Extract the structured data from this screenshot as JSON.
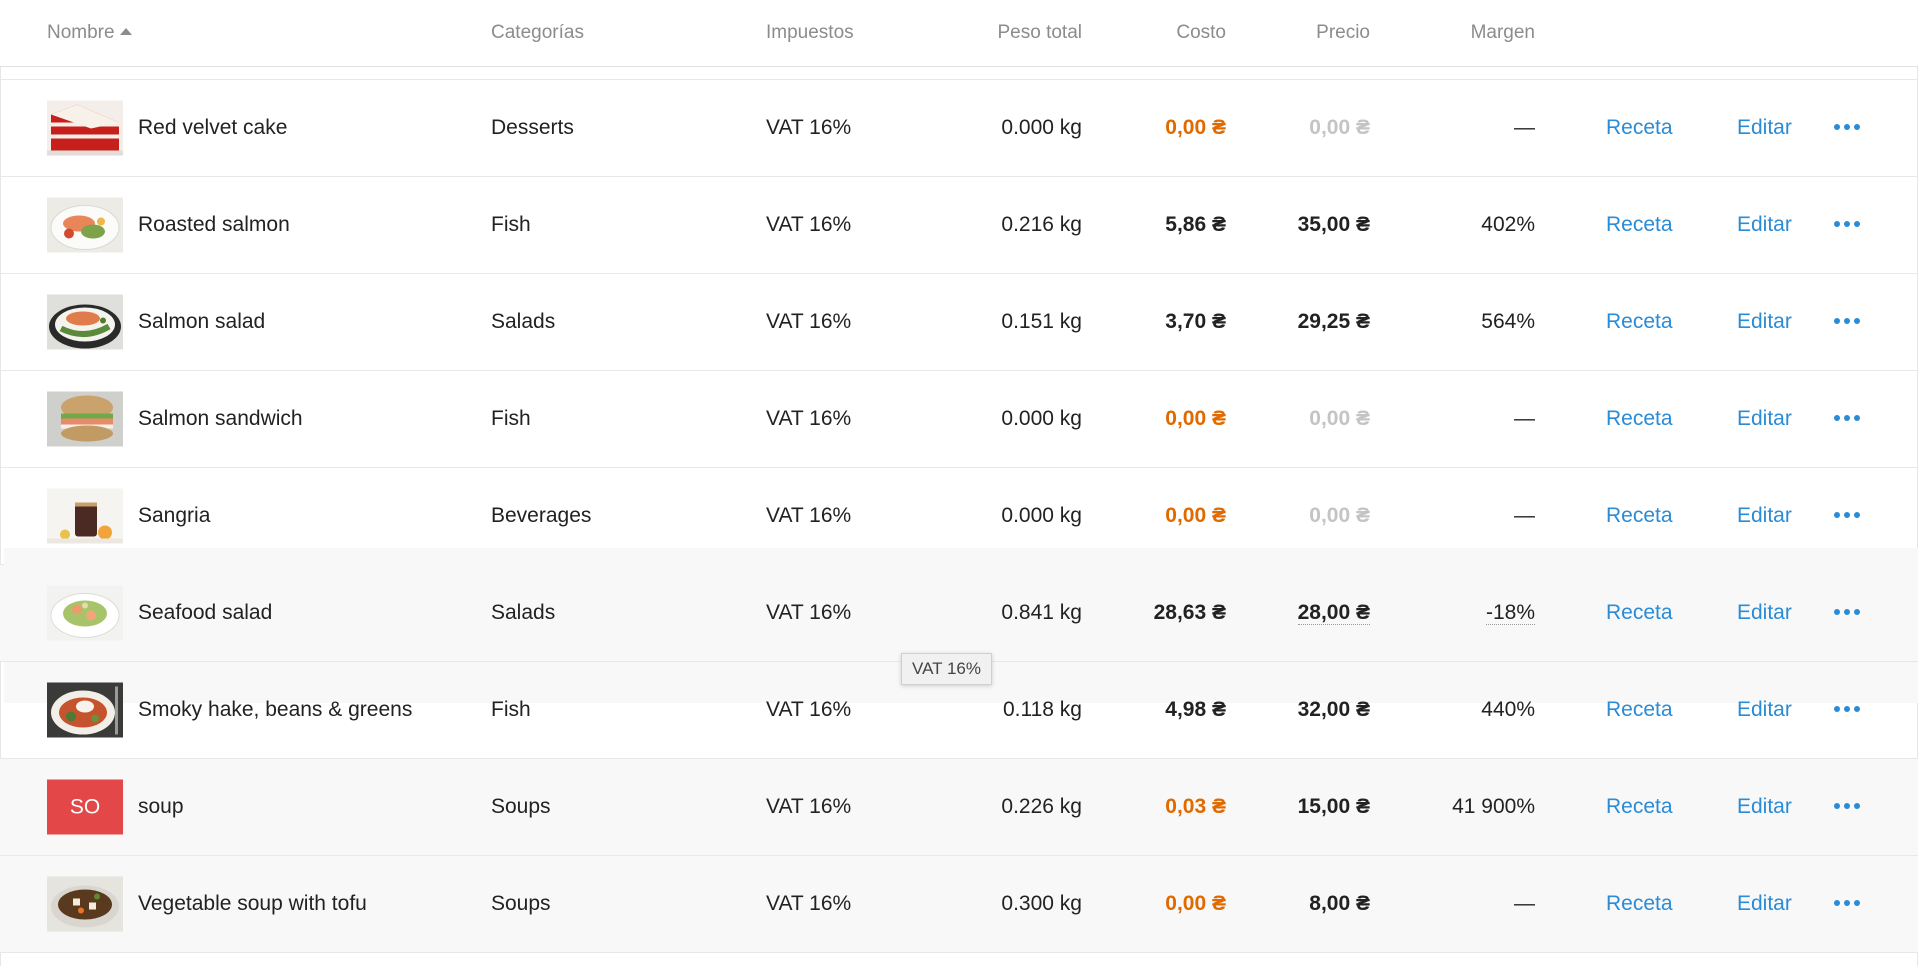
{
  "table": {
    "headers": {
      "name": "Nombre",
      "categories": "Categorías",
      "taxes": "Impuestos",
      "total_weight": "Peso total",
      "cost": "Costo",
      "price": "Precio",
      "margin": "Margen"
    },
    "sort": {
      "column": "name",
      "direction": "ascending"
    },
    "rows": [
      {
        "name": "Red velvet cake",
        "thumb": "red-velvet-cake-photo",
        "category": "Desserts",
        "tax": "VAT 16%",
        "weight": "0.000 kg",
        "cost": "0,00 ₴",
        "cost_state": "warning",
        "price": "0,00 ₴",
        "price_state": "muted",
        "margin": "—",
        "recipe_label": "Receta",
        "edit_label": "Editar"
      },
      {
        "name": "Roasted salmon",
        "thumb": "roasted-salmon-photo",
        "category": "Fish",
        "tax": "VAT 16%",
        "weight": "0.216 kg",
        "cost": "5,86 ₴",
        "cost_state": "normal",
        "price": "35,00 ₴",
        "price_state": "normal",
        "margin": "402%",
        "recipe_label": "Receta",
        "edit_label": "Editar"
      },
      {
        "name": "Salmon salad",
        "thumb": "salmon-salad-photo",
        "category": "Salads",
        "tax": "VAT 16%",
        "weight": "0.151 kg",
        "cost": "3,70 ₴",
        "cost_state": "normal",
        "price": "29,25 ₴",
        "price_state": "normal",
        "margin": "564%",
        "recipe_label": "Receta",
        "edit_label": "Editar"
      },
      {
        "name": "Salmon sandwich",
        "thumb": "salmon-sandwich-photo",
        "category": "Fish",
        "tax": "VAT 16%",
        "weight": "0.000 kg",
        "cost": "0,00 ₴",
        "cost_state": "warning",
        "price": "0,00 ₴",
        "price_state": "muted",
        "margin": "—",
        "recipe_label": "Receta",
        "edit_label": "Editar"
      },
      {
        "name": "Sangria",
        "thumb": "sangria-photo",
        "category": "Beverages",
        "tax": "VAT 16%",
        "weight": "0.000 kg",
        "cost": "0,00 ₴",
        "cost_state": "warning",
        "price": "0,00 ₴",
        "price_state": "muted",
        "margin": "—",
        "recipe_label": "Receta",
        "edit_label": "Editar"
      },
      {
        "name": "Seafood salad",
        "thumb": "seafood-salad-photo",
        "category": "Salads",
        "tax": "VAT 16%",
        "weight": "0.841 kg",
        "cost": "28,63 ₴",
        "cost_state": "normal",
        "price": "28,00 ₴",
        "price_state": "underlined",
        "margin": "-18%",
        "recipe_label": "Receta",
        "edit_label": "Editar"
      },
      {
        "name": "Smoky hake, beans & greens",
        "thumb": "smoky-hake-photo",
        "category": "Fish",
        "tax": "VAT 16%",
        "weight": "0.118 kg",
        "cost": "4,98 ₴",
        "cost_state": "normal",
        "price": "32,00 ₴",
        "price_state": "normal",
        "margin": "440%",
        "recipe_label": "Receta",
        "edit_label": "Editar"
      },
      {
        "name": "soup",
        "initials": "SO",
        "category": "Soups",
        "tax": "VAT 16%",
        "weight": "0.226 kg",
        "cost": "0,03 ₴",
        "cost_state": "warning",
        "price": "15,00 ₴",
        "price_state": "normal",
        "margin": "41 900%",
        "recipe_label": "Receta",
        "edit_label": "Editar"
      },
      {
        "name": "Vegetable soup with tofu",
        "thumb": "vegetable-soup-photo",
        "category": "Soups",
        "tax": "VAT 16%",
        "weight": "0.300 kg",
        "cost": "0,00 ₴",
        "cost_state": "warning",
        "price": "8,00 ₴",
        "price_state": "normal",
        "margin": "—",
        "recipe_label": "Receta",
        "edit_label": "Editar"
      }
    ]
  },
  "tooltip": {
    "text": "VAT 16%"
  },
  "colors": {
    "link": "#2a8bd6",
    "warning": "#e06a00",
    "muted": "#c4c4c4",
    "initials_bg": "#e34747"
  }
}
